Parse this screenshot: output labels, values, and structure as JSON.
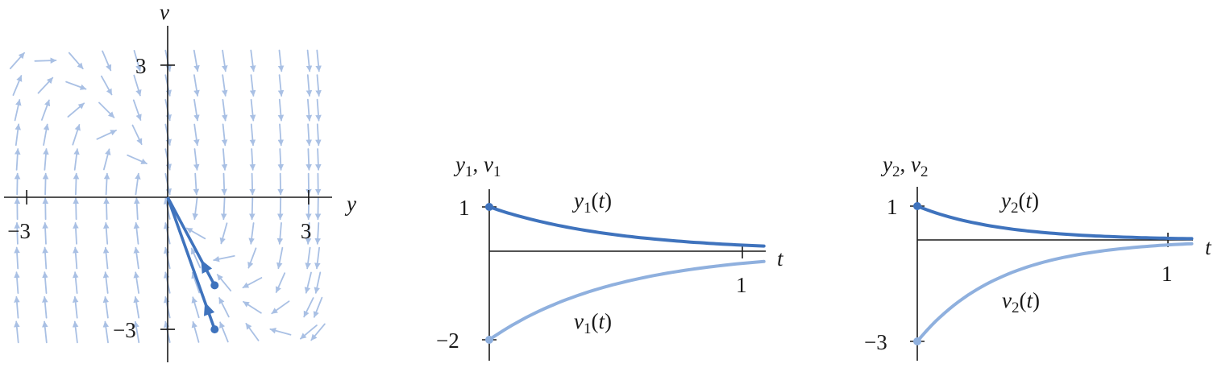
{
  "colors": {
    "dark_series": "#3f73bd",
    "light_series": "#8fb0de",
    "field_arrow": "#a9c0e4",
    "axis": "#1a1a1a"
  },
  "chart_data": [
    {
      "type": "scatter",
      "subtype": "phase-portrait",
      "xlabel": "y",
      "ylabel": "v",
      "xlim": [
        -3.5,
        3.5
      ],
      "ylim": [
        -3.7,
        4.3
      ],
      "x_ticks": [
        {
          "value": -3,
          "label": "−3"
        },
        {
          "value": 3,
          "label": "3"
        }
      ],
      "y_ticks": [
        {
          "value": 3,
          "label": "3"
        },
        {
          "value": -3,
          "label": "−3"
        }
      ],
      "field_arrows": "direction field of y' = v, v' = -6y - 5v on a grid y in {-3.2 ... 3.2}, v in {-3.0 ... 3.1}",
      "trajectories": [
        {
          "start": [
            1,
            -2
          ],
          "end": [
            0,
            0
          ],
          "direction": "toward origin",
          "color": "dark_series"
        },
        {
          "start": [
            1,
            -3
          ],
          "end": [
            0,
            0
          ],
          "direction": "toward origin",
          "color": "dark_series"
        }
      ]
    },
    {
      "type": "line",
      "xlabel": "t",
      "ylabel": "y1, v1",
      "xlim": [
        0,
        1.1
      ],
      "ylim": [
        -2.1,
        1.2
      ],
      "x_ticks": [
        {
          "value": 1,
          "label": "1"
        }
      ],
      "y_ticks": [
        {
          "value": 1,
          "label": "1"
        },
        {
          "value": -2,
          "label": "−2"
        }
      ],
      "series": [
        {
          "name": "y1(t)",
          "formula": "exp(-2t)",
          "x": [
            0,
            0.1,
            0.2,
            0.3,
            0.4,
            0.5,
            0.6,
            0.7,
            0.8,
            0.9,
            1.0,
            1.1
          ],
          "values": [
            1,
            0.82,
            0.67,
            0.55,
            0.45,
            0.37,
            0.3,
            0.25,
            0.2,
            0.17,
            0.14,
            0.11
          ],
          "color": "dark_series"
        },
        {
          "name": "v1(t)",
          "formula": "-2exp(-2t)",
          "x": [
            0,
            0.1,
            0.2,
            0.3,
            0.4,
            0.5,
            0.6,
            0.7,
            0.8,
            0.9,
            1.0,
            1.1
          ],
          "values": [
            -2,
            -1.64,
            -1.34,
            -1.1,
            -0.9,
            -0.74,
            -0.6,
            -0.49,
            -0.4,
            -0.33,
            -0.27,
            -0.22
          ],
          "color": "light_series"
        }
      ]
    },
    {
      "type": "line",
      "xlabel": "t",
      "ylabel": "y2, v2",
      "xlim": [
        0,
        1.1
      ],
      "ylim": [
        -3.1,
        1.2
      ],
      "x_ticks": [
        {
          "value": 1,
          "label": "1"
        }
      ],
      "y_ticks": [
        {
          "value": 1,
          "label": "1"
        },
        {
          "value": -3,
          "label": "−3"
        }
      ],
      "series": [
        {
          "name": "y2(t)",
          "formula": "exp(-3t)",
          "x": [
            0,
            0.1,
            0.2,
            0.3,
            0.4,
            0.5,
            0.6,
            0.7,
            0.8,
            0.9,
            1.0,
            1.1
          ],
          "values": [
            1,
            0.74,
            0.55,
            0.41,
            0.3,
            0.22,
            0.17,
            0.12,
            0.09,
            0.07,
            0.05,
            0.04
          ],
          "color": "dark_series"
        },
        {
          "name": "v2(t)",
          "formula": "-3exp(-3t)",
          "x": [
            0,
            0.1,
            0.2,
            0.3,
            0.4,
            0.5,
            0.6,
            0.7,
            0.8,
            0.9,
            1.0,
            1.1
          ],
          "values": [
            -3,
            -2.22,
            -1.65,
            -1.22,
            -0.9,
            -0.67,
            -0.5,
            -0.37,
            -0.27,
            -0.2,
            -0.15,
            -0.11
          ],
          "color": "light_series"
        }
      ]
    }
  ]
}
